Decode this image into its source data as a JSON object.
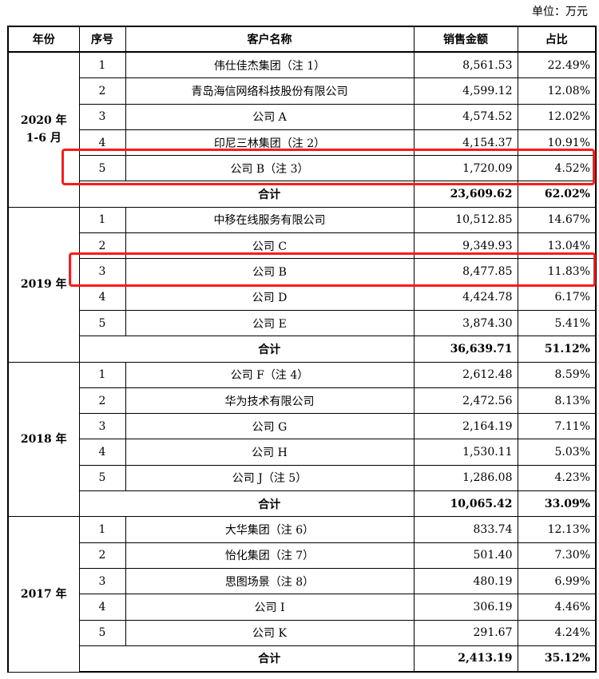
{
  "unit_label": "单位：万元",
  "columns": [
    "年份",
    "序号",
    "客户名称",
    "销售金额",
    "占比"
  ],
  "groups": [
    {
      "year": "2020 年\n1-6 月",
      "rows": [
        {
          "no": "1",
          "name": "伟仕佳杰集团（注 1）",
          "amount": "8,561.53",
          "pct": "22.49%"
        },
        {
          "no": "2",
          "name": "青岛海信网络科技股份有限公司",
          "amount": "4,599.12",
          "pct": "12.08%"
        },
        {
          "no": "3",
          "name": "公司 A",
          "amount": "4,574.52",
          "pct": "12.02%"
        },
        {
          "no": "4",
          "name": "印尼三林集团（注 2）",
          "amount": "4,154.37",
          "pct": "10.91%"
        },
        {
          "no": "5",
          "name": "公司 B（注 3）",
          "amount": "1,720.09",
          "pct": "4.52%"
        }
      ],
      "total": {
        "label": "合计",
        "amount": "23,609.62",
        "pct": "62.02%"
      }
    },
    {
      "year": "2019 年",
      "rows": [
        {
          "no": "1",
          "name": "中移在线服务有限公司",
          "amount": "10,512.85",
          "pct": "14.67%"
        },
        {
          "no": "2",
          "name": "公司 C",
          "amount": "9,349.93",
          "pct": "13.04%"
        },
        {
          "no": "3",
          "name": "公司 B",
          "amount": "8,477.85",
          "pct": "11.83%"
        },
        {
          "no": "4",
          "name": "公司 D",
          "amount": "4,424.78",
          "pct": "6.17%"
        },
        {
          "no": "5",
          "name": "公司 E",
          "amount": "3,874.30",
          "pct": "5.41%"
        }
      ],
      "total": {
        "label": "合计",
        "amount": "36,639.71",
        "pct": "51.12%"
      }
    },
    {
      "year": "2018 年",
      "rows": [
        {
          "no": "1",
          "name": "公司 F（注 4）",
          "amount": "2,612.48",
          "pct": "8.59%"
        },
        {
          "no": "2",
          "name": "华为技术有限公司",
          "amount": "2,472.56",
          "pct": "8.13%"
        },
        {
          "no": "3",
          "name": "公司 G",
          "amount": "2,164.19",
          "pct": "7.11%"
        },
        {
          "no": "4",
          "name": "公司 H",
          "amount": "1,530.11",
          "pct": "5.03%"
        },
        {
          "no": "5",
          "name": "公司 J（注 5）",
          "amount": "1,286.08",
          "pct": "4.23%"
        }
      ],
      "total": {
        "label": "合计",
        "amount": "10,065.42",
        "pct": "33.09%"
      }
    },
    {
      "year": "2017 年",
      "rows": [
        {
          "no": "1",
          "name": "大华集团（注 6）",
          "amount": "833.74",
          "pct": "12.13%"
        },
        {
          "no": "2",
          "name": "怡化集团（注 7）",
          "amount": "501.40",
          "pct": "7.30%"
        },
        {
          "no": "3",
          "name": "思图场景（注 8）",
          "amount": "480.19",
          "pct": "6.99%"
        },
        {
          "no": "4",
          "name": "公司 I",
          "amount": "306.19",
          "pct": "4.46%"
        },
        {
          "no": "5",
          "name": "公司 K",
          "amount": "291.67",
          "pct": "4.24%"
        }
      ],
      "total": {
        "label": "合计",
        "amount": "2,413.19",
        "pct": "35.12%"
      }
    }
  ],
  "highlight_color": "#ff1a1a"
}
